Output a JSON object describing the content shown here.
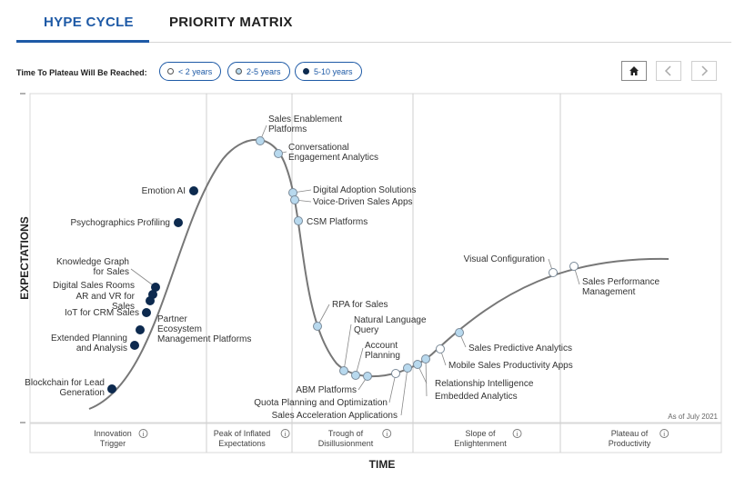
{
  "tabs": [
    {
      "label": "HYPE CYCLE",
      "active": true
    },
    {
      "label": "PRIORITY MATRIX",
      "active": false
    }
  ],
  "legend": {
    "label": "Time To Plateau Will Be Reached:",
    "items": [
      {
        "label": "< 2 years",
        "key": "lt2",
        "color": "#ffffff"
      },
      {
        "label": "2-5 years",
        "key": "2to5",
        "color": "#b8d9ee"
      },
      {
        "label": "5-10 years",
        "key": "5to10",
        "color": "#0d2a4f"
      }
    ]
  },
  "nav": {
    "home_icon": "home-icon",
    "prev_icon": "chevron-left-icon",
    "next_icon": "chevron-right-icon"
  },
  "chart_data": {
    "type": "scatter",
    "xlabel": "TIME",
    "ylabel": "EXPECTATIONS",
    "as_of": "As of July 2021",
    "phases": [
      {
        "label": "Innovation Trigger"
      },
      {
        "label": "Peak of Inflated Expectations"
      },
      {
        "label": "Trough of Disillusionment"
      },
      {
        "label": "Slope of Enlightenment"
      },
      {
        "label": "Plateau of Productivity"
      }
    ],
    "technologies": [
      {
        "label": "Blockchain for Lead Generation",
        "plateau": "5to10",
        "phase": "Innovation Trigger"
      },
      {
        "label": "Extended Planning and Analysis",
        "plateau": "5to10",
        "phase": "Innovation Trigger"
      },
      {
        "label": "Partner Ecosystem Management Platforms",
        "plateau": "5to10",
        "phase": "Innovation Trigger"
      },
      {
        "label": "IoT for CRM Sales",
        "plateau": "5to10",
        "phase": "Innovation Trigger"
      },
      {
        "label": "AR and VR for Sales",
        "plateau": "5to10",
        "phase": "Innovation Trigger"
      },
      {
        "label": "Digital Sales Rooms",
        "plateau": "5to10",
        "phase": "Innovation Trigger"
      },
      {
        "label": "Knowledge Graph for Sales",
        "plateau": "5to10",
        "phase": "Innovation Trigger"
      },
      {
        "label": "Psychographics Profiling",
        "plateau": "5to10",
        "phase": "Innovation Trigger"
      },
      {
        "label": "Emotion AI",
        "plateau": "5to10",
        "phase": "Innovation Trigger"
      },
      {
        "label": "Sales Enablement Platforms",
        "plateau": "2to5",
        "phase": "Peak of Inflated Expectations"
      },
      {
        "label": "Conversational Engagement Analytics",
        "plateau": "2to5",
        "phase": "Peak of Inflated Expectations"
      },
      {
        "label": "Digital Adoption Solutions",
        "plateau": "2to5",
        "phase": "Peak of Inflated Expectations"
      },
      {
        "label": "Voice-Driven Sales Apps",
        "plateau": "2to5",
        "phase": "Peak of Inflated Expectations"
      },
      {
        "label": "CSM Platforms",
        "plateau": "2to5",
        "phase": "Trough of Disillusionment"
      },
      {
        "label": "RPA for Sales",
        "plateau": "2to5",
        "phase": "Trough of Disillusionment"
      },
      {
        "label": "Natural Language Query",
        "plateau": "2to5",
        "phase": "Trough of Disillusionment"
      },
      {
        "label": "Account Planning",
        "plateau": "2to5",
        "phase": "Trough of Disillusionment"
      },
      {
        "label": "ABM Platforms",
        "plateau": "2to5",
        "phase": "Trough of Disillusionment"
      },
      {
        "label": "Quota Planning and Optimization",
        "plateau": "lt2",
        "phase": "Trough of Disillusionment"
      },
      {
        "label": "Sales Acceleration Applications",
        "plateau": "2to5",
        "phase": "Trough of Disillusionment"
      },
      {
        "label": "Relationship Intelligence",
        "plateau": "2to5",
        "phase": "Trough of Disillusionment"
      },
      {
        "label": "Embedded Analytics",
        "plateau": "2to5",
        "phase": "Slope of Enlightenment"
      },
      {
        "label": "Mobile Sales Productivity Apps",
        "plateau": "lt2",
        "phase": "Slope of Enlightenment"
      },
      {
        "label": "Sales Predictive Analytics",
        "plateau": "2to5",
        "phase": "Slope of Enlightenment"
      },
      {
        "label": "Visual Configuration",
        "plateau": "lt2",
        "phase": "Slope of Enlightenment"
      },
      {
        "label": "Sales Performance Management",
        "plateau": "lt2",
        "phase": "Plateau of Productivity"
      }
    ]
  }
}
